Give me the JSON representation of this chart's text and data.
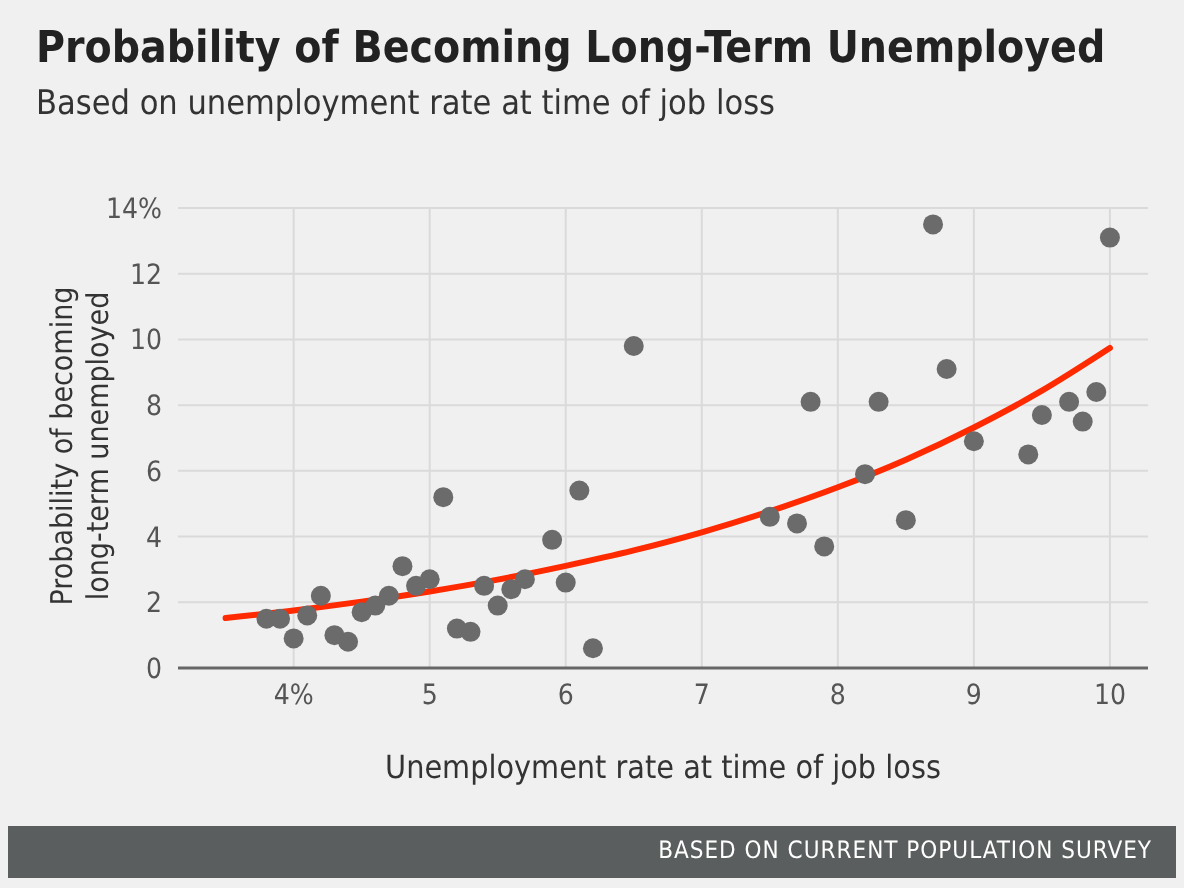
{
  "chart_data": {
    "type": "scatter",
    "title": "Probability of Becoming Long-Term Unemployed",
    "subtitle": "Based on unemployment rate at time of job loss",
    "xlabel": "Unemployment rate at time of job loss",
    "ylabel": "Probability of becoming long-term unemployed",
    "annotations": [
      "BASED ON CURRENT POPULATION SURVEY"
    ],
    "xlim": [
      3.15,
      10.28
    ],
    "xticks": [
      {
        "value": 4,
        "label": "4%"
      },
      5,
      6,
      7,
      8,
      9,
      10
    ],
    "ylim": [
      0,
      14
    ],
    "yticks": [
      0,
      2,
      4,
      6,
      8,
      10,
      12,
      {
        "value": 14,
        "label": "14%"
      }
    ],
    "grid": true,
    "series": [
      {
        "color": "#6b6b6b",
        "marker": "circle",
        "x": [
          3.8,
          3.9,
          4.0,
          4.1,
          4.2,
          4.3,
          4.4,
          4.5,
          4.6,
          4.7,
          4.8,
          4.9,
          5.0,
          5.1,
          5.2,
          5.3,
          5.4,
          5.5,
          5.6,
          5.7,
          5.9,
          6.0,
          6.1,
          6.2,
          6.5,
          7.5,
          7.7,
          7.8,
          7.9,
          8.2,
          8.3,
          8.5,
          8.7,
          8.8,
          9.0,
          9.4,
          9.5,
          9.7,
          9.8,
          9.9,
          10.0
        ],
        "values": [
          1.5,
          1.5,
          0.9,
          1.6,
          2.2,
          1.0,
          0.8,
          1.7,
          1.9,
          2.2,
          3.1,
          2.5,
          2.7,
          5.2,
          1.2,
          1.1,
          2.5,
          1.9,
          2.4,
          2.7,
          3.9,
          2.6,
          5.4,
          0.6,
          9.8,
          4.6,
          4.4,
          8.1,
          3.7,
          5.9,
          8.1,
          4.5,
          13.5,
          9.1,
          6.9,
          6.5,
          7.7,
          8.1,
          7.5,
          8.4,
          13.1
        ]
      },
      {
        "type": "line",
        "color": "#ff2a00",
        "marker": "none",
        "line_style": "solid",
        "x": [
          3.5,
          4,
          4.5,
          5,
          5.5,
          6,
          6.5,
          7,
          7.5,
          8,
          8.5,
          9,
          9.5,
          10
        ],
        "values": [
          1.52,
          1.75,
          2.02,
          2.33,
          2.69,
          3.11,
          3.58,
          4.13,
          4.77,
          5.5,
          6.34,
          7.32,
          8.44,
          9.74
        ]
      }
    ]
  }
}
